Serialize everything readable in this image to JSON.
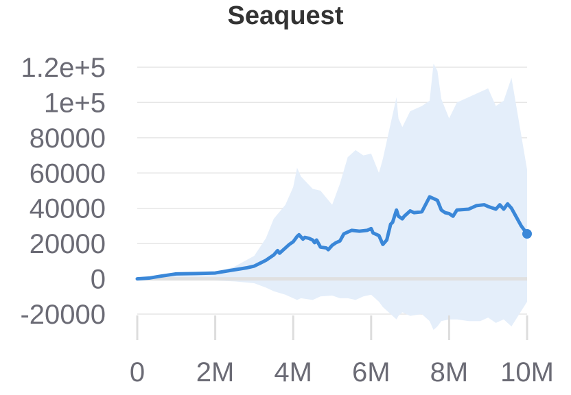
{
  "chart_data": {
    "type": "line",
    "title": "Seaquest",
    "xlabel": "",
    "ylabel": "",
    "xlim": [
      0,
      10000000
    ],
    "ylim": [
      -20000,
      120000
    ],
    "grid": true,
    "legend": "none",
    "x_ticks": [
      0,
      2000000,
      4000000,
      6000000,
      8000000,
      10000000
    ],
    "x_tick_labels": [
      "0",
      "2M",
      "4M",
      "6M",
      "8M",
      "10M"
    ],
    "y_ticks": [
      -20000,
      0,
      20000,
      40000,
      60000,
      80000,
      100000,
      120000
    ],
    "y_tick_labels": [
      "-20000",
      "0",
      "20000",
      "40000",
      "60000",
      "80000",
      "1e+5",
      "1.2e+5"
    ],
    "colors": {
      "line": "#3a87d8",
      "band": "#e4eefa",
      "grid": "#e6e6e6",
      "zero_line": "#e0e0e0",
      "axis_tick": "#dddddd",
      "tick_text": "#6b6b75",
      "title": "#333333"
    },
    "series": [
      {
        "x": [
          0,
          300000,
          600000,
          1000000,
          1500000,
          2000000,
          2400000,
          2800000,
          3000000,
          3300000,
          3500000,
          3600000,
          3650000,
          3800000,
          3900000,
          4000000,
          4100000,
          4150000,
          4250000,
          4300000,
          4400000,
          4500000,
          4550000,
          4600000,
          4700000,
          4850000,
          4900000,
          5000000,
          5100000,
          5200000,
          5300000,
          5500000,
          5700000,
          5900000,
          6000000,
          6050000,
          6100000,
          6200000,
          6300000,
          6400000,
          6500000,
          6550000,
          6650000,
          6700000,
          6800000,
          6850000,
          6900000,
          7000000,
          7100000,
          7300000,
          7500000,
          7700000,
          7800000,
          7900000,
          8000000,
          8100000,
          8200000,
          8500000,
          8700000,
          8900000,
          9000000,
          9200000,
          9300000,
          9400000,
          9500000,
          9600000,
          9700000,
          9850000,
          10000000
        ],
        "y": [
          0,
          400,
          1500,
          2800,
          3000,
          3300,
          4800,
          6200,
          7200,
          10500,
          13500,
          16000,
          14500,
          17500,
          19500,
          21000,
          24000,
          25000,
          22500,
          23500,
          23000,
          22000,
          20500,
          22000,
          18000,
          17500,
          16500,
          19000,
          20500,
          21500,
          25500,
          27500,
          27000,
          27500,
          28500,
          26000,
          25500,
          24500,
          19500,
          22000,
          31000,
          32000,
          39000,
          35500,
          34000,
          35500,
          36500,
          38500,
          37500,
          38000,
          46500,
          44500,
          39000,
          37500,
          37000,
          35500,
          39000,
          39500,
          41500,
          42000,
          41000,
          39500,
          42000,
          39500,
          42500,
          40000,
          36000,
          30000,
          25500
        ]
      }
    ],
    "band": {
      "x": [
        0,
        1000000,
        2000000,
        2500000,
        3000000,
        3300000,
        3500000,
        3800000,
        4000000,
        4100000,
        4200000,
        4500000,
        4700000,
        5000000,
        5200000,
        5400000,
        5600000,
        5800000,
        6000000,
        6200000,
        6300000,
        6500000,
        6650000,
        6700000,
        6800000,
        7000000,
        7300000,
        7500000,
        7600000,
        7700000,
        7800000,
        8000000,
        8200000,
        8500000,
        8800000,
        9000000,
        9200000,
        9400000,
        9600000,
        9800000,
        10000000
      ],
      "upper": [
        0,
        2500,
        3500,
        7000,
        13000,
        23000,
        34000,
        42000,
        52000,
        63000,
        58000,
        51000,
        50000,
        42000,
        54000,
        69000,
        73000,
        70000,
        71000,
        60000,
        68000,
        88000,
        103000,
        91000,
        86000,
        95000,
        98000,
        101000,
        122000,
        118000,
        102000,
        91000,
        100000,
        103000,
        106000,
        108000,
        98000,
        101000,
        114000,
        88000,
        62000
      ],
      "lower": [
        0,
        -500,
        -1000,
        -1500,
        -2500,
        -5000,
        -7000,
        -9000,
        -11000,
        -12000,
        -11000,
        -12000,
        -10000,
        -9500,
        -11000,
        -11000,
        -12000,
        -10000,
        -9000,
        -13000,
        -16000,
        -20000,
        -23000,
        -21000,
        -19000,
        -21000,
        -20000,
        -24000,
        -29000,
        -27000,
        -24000,
        -23000,
        -23000,
        -24000,
        -24000,
        -22000,
        -25000,
        -23000,
        -27000,
        -20000,
        -13000
      ]
    }
  }
}
